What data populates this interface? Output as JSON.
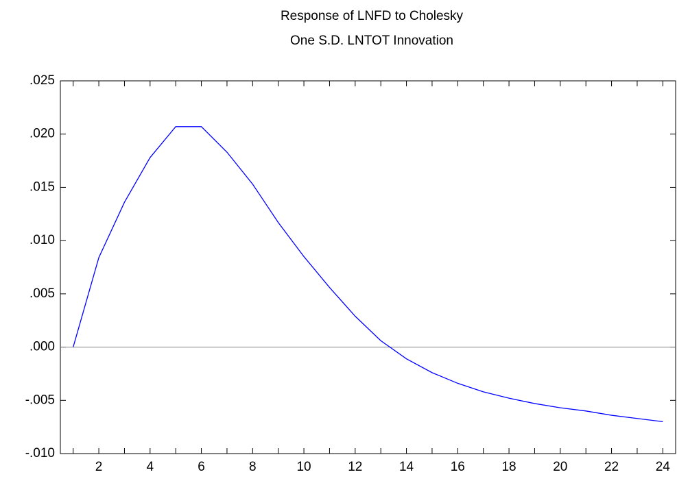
{
  "chart_data": {
    "type": "line",
    "title": [
      "Response of LNFD to Cholesky",
      "One S.D. LNTOT Innovation"
    ],
    "categories": [
      null,
      "2",
      null,
      "4",
      null,
      "6",
      null,
      "8",
      null,
      "10",
      null,
      "12",
      null,
      "14",
      null,
      "16",
      null,
      "18",
      null,
      "20",
      null,
      "22",
      null,
      "24"
    ],
    "series": [
      {
        "color": "#0000ff",
        "values": [
          0.0,
          0.0084,
          0.0136,
          0.0178,
          0.0207,
          0.0207,
          0.0183,
          0.0153,
          0.0117,
          0.0085,
          0.0056,
          0.0029,
          0.0006,
          -0.0011,
          -0.0024,
          -0.0034,
          -0.0042,
          -0.0048,
          -0.0053,
          -0.0057,
          -0.006,
          -0.0064,
          -0.0067,
          -0.007
        ]
      }
    ],
    "ylim": [
      -0.01,
      0.025
    ],
    "yticks": [
      {
        "value": -0.01,
        "label": "-.010"
      },
      {
        "value": -0.005,
        "label": "-.005"
      },
      {
        "value": 0,
        "label": ".000"
      },
      {
        "value": 0.005,
        "label": ".005"
      },
      {
        "value": 0.01,
        "label": ".010"
      },
      {
        "value": 0.015,
        "label": ".015"
      },
      {
        "value": 0.02,
        "label": ".020"
      },
      {
        "value": 0.025,
        "label": ".025"
      }
    ],
    "zero_line": true,
    "zero_line_color": "#808080"
  }
}
